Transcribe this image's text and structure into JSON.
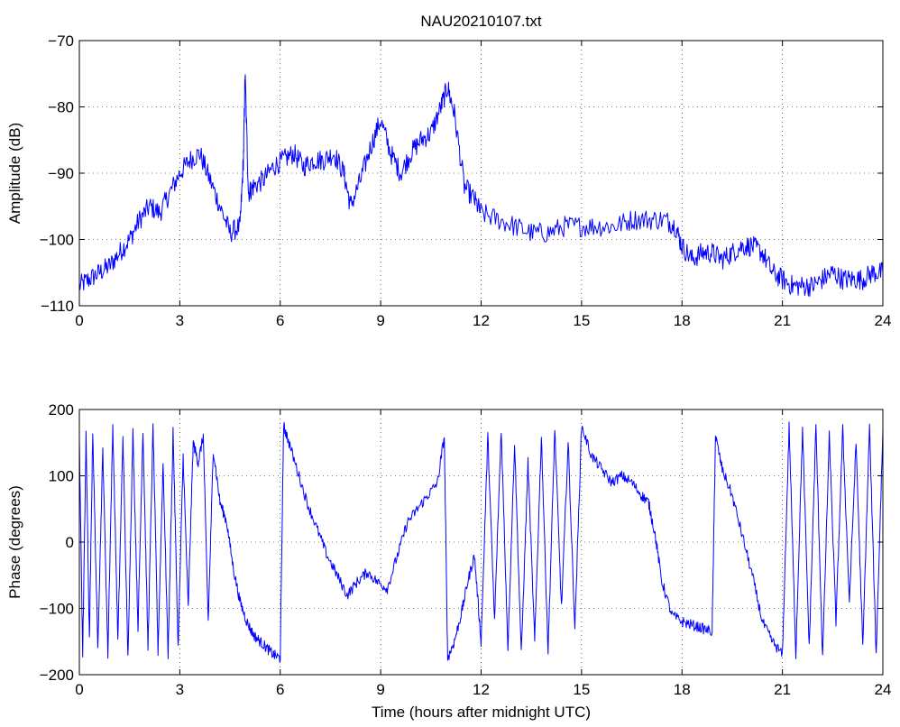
{
  "colors": {
    "series": "#0000ff",
    "grid": "#000000",
    "background": "#ffffff"
  },
  "chart_data": [
    {
      "type": "line",
      "title": "NAU20210107.txt",
      "xlabel": "",
      "ylabel": "Amplitude (dB)",
      "xlim": [
        0,
        24
      ],
      "ylim": [
        -110,
        -70
      ],
      "xticks": [
        0,
        3,
        6,
        9,
        12,
        15,
        18,
        21,
        24
      ],
      "yticks": [
        -110,
        -100,
        -90,
        -80,
        -70
      ],
      "xtick_labels": [
        "0",
        "3",
        "6",
        "9",
        "12",
        "15",
        "18",
        "21",
        "24"
      ],
      "ytick_labels": [
        "−110",
        "−100",
        "−90",
        "−80",
        "−70"
      ],
      "grid": true,
      "noise": 1.6,
      "series": [
        {
          "x": [
            0,
            0.3,
            0.6,
            0.9,
            1.2,
            1.5,
            1.8,
            2.1,
            2.4,
            2.7,
            3.0,
            3.3,
            3.6,
            3.9,
            4.2,
            4.5,
            4.8,
            4.9,
            4.95,
            5.05,
            5.2,
            5.5,
            5.8,
            6.1,
            6.4,
            6.7,
            7.0,
            7.3,
            7.6,
            7.9,
            8.1,
            8.4,
            8.7,
            9.0,
            9.3,
            9.6,
            9.9,
            10.2,
            10.5,
            10.8,
            11.0,
            11.2,
            11.5,
            11.8,
            12.0,
            12.5,
            13.0,
            13.5,
            14.0,
            14.5,
            15.0,
            15.5,
            16.0,
            16.5,
            17.0,
            17.5,
            17.8,
            18.0,
            18.3,
            18.6,
            18.9,
            19.2,
            19.5,
            19.8,
            20.1,
            20.4,
            20.7,
            21.0,
            21.3,
            21.6,
            21.9,
            22.2,
            22.5,
            22.8,
            23.1,
            23.4,
            23.7,
            24.0
          ],
          "y": [
            -107,
            -106,
            -105,
            -104,
            -102,
            -100,
            -97,
            -95,
            -96,
            -93,
            -90,
            -88,
            -87,
            -91,
            -95,
            -99,
            -98,
            -88,
            -75,
            -93,
            -92,
            -91,
            -89,
            -88,
            -87,
            -89,
            -88,
            -88,
            -87,
            -90,
            -95,
            -91,
            -86,
            -82,
            -87,
            -90,
            -87,
            -85,
            -84,
            -80,
            -77,
            -81,
            -92,
            -94,
            -96,
            -97,
            -98,
            -99,
            -99,
            -98,
            -98,
            -98,
            -98,
            -97,
            -97,
            -97,
            -98,
            -101,
            -103,
            -102,
            -102,
            -103,
            -102,
            -101,
            -101,
            -102,
            -105,
            -106,
            -107,
            -107,
            -107,
            -106,
            -105,
            -106,
            -106,
            -106,
            -105,
            -105
          ]
        }
      ]
    },
    {
      "type": "line",
      "title": "",
      "xlabel": "Time (hours after midnight UTC)",
      "ylabel": "Phase (degrees)",
      "xlim": [
        0,
        24
      ],
      "ylim": [
        -200,
        200
      ],
      "xticks": [
        0,
        3,
        6,
        9,
        12,
        15,
        18,
        21,
        24
      ],
      "yticks": [
        -200,
        -100,
        0,
        100,
        200
      ],
      "xtick_labels": [
        "0",
        "3",
        "6",
        "9",
        "12",
        "15",
        "18",
        "21",
        "24"
      ],
      "ytick_labels": [
        "−200",
        "−100",
        "0",
        "100",
        "200"
      ],
      "grid": true,
      "noise": 8,
      "series": [
        {
          "x": [
            0,
            0.1,
            0.2,
            0.3,
            0.4,
            0.55,
            0.7,
            0.85,
            1.0,
            1.15,
            1.3,
            1.45,
            1.6,
            1.75,
            1.9,
            2.05,
            2.2,
            2.35,
            2.5,
            2.65,
            2.8,
            2.95,
            3.1,
            3.25,
            3.4,
            3.55,
            3.7,
            3.85,
            4.0,
            4.2,
            4.4,
            4.6,
            4.8,
            5.0,
            5.2,
            5.4,
            5.6,
            5.8,
            6.0,
            6.1,
            6.2,
            6.5,
            6.8,
            7.1,
            7.4,
            7.7,
            8.0,
            8.3,
            8.6,
            8.9,
            9.2,
            9.5,
            9.8,
            10.1,
            10.4,
            10.7,
            10.9,
            11.0,
            11.2,
            11.4,
            11.6,
            11.8,
            12.0,
            12.2,
            12.4,
            12.6,
            12.8,
            13.0,
            13.2,
            13.4,
            13.6,
            13.8,
            14.0,
            14.2,
            14.4,
            14.6,
            14.8,
            15.0,
            15.3,
            15.6,
            15.9,
            16.2,
            16.5,
            16.8,
            17.0,
            17.2,
            17.4,
            17.7,
            18.0,
            18.3,
            18.6,
            18.9,
            19.0,
            19.2,
            19.5,
            19.8,
            20.1,
            20.4,
            20.7,
            21.0,
            21.2,
            21.4,
            21.6,
            21.8,
            22.0,
            22.2,
            22.4,
            22.6,
            22.8,
            23.0,
            23.2,
            23.4,
            23.6,
            23.8,
            24.0
          ],
          "y": [
            150,
            -170,
            160,
            -150,
            170,
            -160,
            140,
            -170,
            175,
            -150,
            160,
            -175,
            165,
            -130,
            170,
            -160,
            175,
            -165,
            120,
            -170,
            170,
            -160,
            130,
            -100,
            150,
            120,
            160,
            -120,
            140,
            60,
            30,
            -40,
            -90,
            -120,
            -140,
            -150,
            -160,
            -170,
            -175,
            175,
            160,
            110,
            60,
            20,
            -20,
            -50,
            -80,
            -60,
            -45,
            -60,
            -70,
            -20,
            30,
            50,
            70,
            90,
            160,
            -175,
            -150,
            -110,
            -60,
            -20,
            -150,
            160,
            -120,
            170,
            -160,
            150,
            -170,
            120,
            -150,
            160,
            -165,
            170,
            -100,
            150,
            -130,
            175,
            130,
            110,
            90,
            100,
            90,
            70,
            60,
            10,
            -60,
            -110,
            -120,
            -125,
            -130,
            -135,
            160,
            110,
            70,
            10,
            -50,
            -120,
            -150,
            -170,
            175,
            -170,
            170,
            -160,
            175,
            -175,
            160,
            -120,
            170,
            -90,
            150,
            -160,
            175,
            -170,
            170
          ]
        }
      ]
    }
  ]
}
